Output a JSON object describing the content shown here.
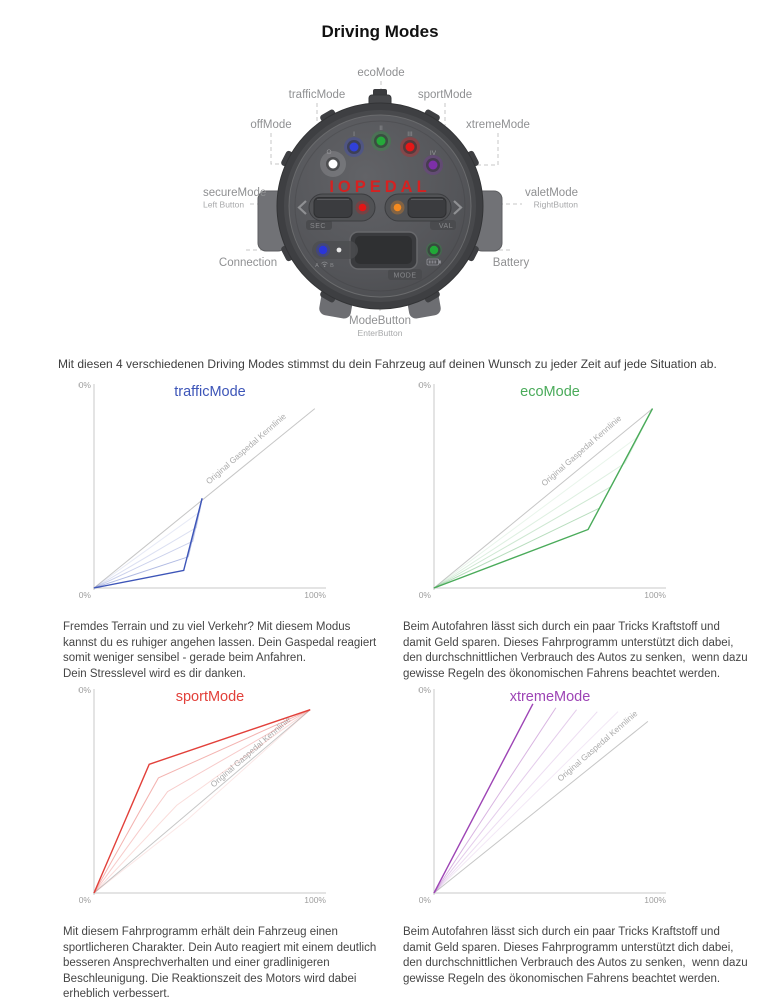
{
  "page": {
    "title": "Driving Modes",
    "intro": "Mit diesen 4 verschiedenen Driving Modes stimmst du dein Fahrzeug auf deinen Wunsch zu jeder Zeit auf jede Situation ab."
  },
  "device": {
    "logo": "IOPEDAL",
    "callouts": {
      "eco": "ecoMode",
      "traffic": "trafficMode",
      "sport": "sportMode",
      "off": "offMode",
      "xtreme": "xtremeMode",
      "secure": "secureMode",
      "secure_sub": "Left Button",
      "valet": "valetMode",
      "valet_sub": "RightButton",
      "connection": "Connection",
      "battery": "Battery",
      "mode": "ModeButton",
      "mode_sub": "EnterButton"
    },
    "markings": {
      "off": "O",
      "traffic": "I",
      "eco": "II",
      "sport": "III",
      "xtreme": "IV",
      "sec": "SEC",
      "val": "VAL",
      "mode": "MODE",
      "conn_a": "A",
      "conn_b": "B"
    },
    "led_colors": {
      "off": "#ffffff",
      "traffic": "#3040d8",
      "eco": "#25a93a",
      "sport": "#e61717",
      "xtreme": "#7d2fa8",
      "sec": "#e41616",
      "val": "#f58a1f",
      "conn": "#2a35d8",
      "battery": "#21a837"
    }
  },
  "chart_data": [
    {
      "type": "line",
      "title": "trafficMode",
      "color": "#3d55b8",
      "xlim": [
        0,
        100
      ],
      "ylim": [
        0,
        100
      ],
      "axis": {
        "y_top": "100%",
        "origin": "0%",
        "x_right": "100%"
      },
      "reference_line": {
        "label": "Original Gaspedal Kennlinie",
        "points": [
          [
            0,
            0
          ],
          [
            96,
            92
          ]
        ],
        "label_at": [
          50,
          53
        ]
      },
      "series": [
        {
          "name": "fan-4",
          "points": [
            [
              0,
              0
            ],
            [
              46,
              39
            ],
            [
              47,
              46
            ]
          ],
          "opacity": 0.12,
          "emphasis": false
        },
        {
          "name": "fan-3",
          "points": [
            [
              0,
              0
            ],
            [
              44.5,
              31
            ],
            [
              47,
              46
            ]
          ],
          "opacity": 0.18,
          "emphasis": false
        },
        {
          "name": "fan-2",
          "points": [
            [
              0,
              0
            ],
            [
              43,
              24
            ],
            [
              47,
              46
            ]
          ],
          "opacity": 0.27,
          "emphasis": false
        },
        {
          "name": "fan-1",
          "points": [
            [
              0,
              0
            ],
            [
              41,
              16
            ],
            [
              47,
              46
            ]
          ],
          "opacity": 0.4,
          "emphasis": false
        },
        {
          "name": "trafficMode-curve",
          "points": [
            [
              0,
              0
            ],
            [
              39,
              9
            ],
            [
              47,
              46
            ]
          ],
          "opacity": 1,
          "emphasis": true
        }
      ],
      "description": "Fremdes Terrain und zu viel Verkehr? Mit diesem Modus\nkannst du es ruhiger angehen lassen. Dein Gaspedal reagiert\nsomit weniger sensibel - gerade beim Anfahren.\nDein Stresslevel wird es dir danken."
    },
    {
      "type": "line",
      "title": "ecoMode",
      "color": "#4aab5a",
      "xlim": [
        0,
        100
      ],
      "ylim": [
        0,
        100
      ],
      "axis": {
        "y_top": "100%",
        "origin": "0%",
        "x_right": "100%"
      },
      "reference_line": {
        "label": "Original Gaspedal Kennlinie",
        "points": [
          [
            0,
            0
          ],
          [
            95,
            92
          ]
        ],
        "label_at": [
          48,
          52
        ]
      },
      "series": [
        {
          "name": "fan-4",
          "points": [
            [
              0,
              0
            ],
            [
              88,
              77
            ],
            [
              95,
              92
            ]
          ],
          "opacity": 0.12,
          "emphasis": false
        },
        {
          "name": "fan-3",
          "points": [
            [
              0,
              0
            ],
            [
              83,
              64
            ],
            [
              95,
              92
            ]
          ],
          "opacity": 0.18,
          "emphasis": false
        },
        {
          "name": "fan-2",
          "points": [
            [
              0,
              0
            ],
            [
              77,
              52
            ],
            [
              95,
              92
            ]
          ],
          "opacity": 0.27,
          "emphasis": false
        },
        {
          "name": "fan-1",
          "points": [
            [
              0,
              0
            ],
            [
              72,
              41
            ],
            [
              95,
              92
            ]
          ],
          "opacity": 0.4,
          "emphasis": false
        },
        {
          "name": "ecoMode-curve",
          "points": [
            [
              0,
              0
            ],
            [
              67,
              30
            ],
            [
              95,
              92
            ]
          ],
          "opacity": 1,
          "emphasis": true
        }
      ],
      "description": "Beim Autofahren lässt sich durch ein paar Tricks Kraftstoff und\ndamit Geld sparen. Dieses Fahrprogramm unterstützt dich dabei,\nden durchschnittlichen Verbrauch des Autos zu senken,  wenn dazu\ngewisse Regeln des ökonomischen Fahrens beachtet werden."
    },
    {
      "type": "line",
      "title": "sportMode",
      "color": "#e2403a",
      "xlim": [
        0,
        100
      ],
      "ylim": [
        0,
        100
      ],
      "axis": {
        "y_top": "100%",
        "origin": "0%",
        "x_right": "100%"
      },
      "reference_line": {
        "label": "Original Gaspedal Kennlinie",
        "points": [
          [
            0,
            0
          ],
          [
            94,
            94
          ]
        ],
        "label_at": [
          52,
          54
        ]
      },
      "series": [
        {
          "name": "fan-4",
          "points": [
            [
              0,
              0
            ],
            [
              41,
              38
            ],
            [
              94,
              94
            ]
          ],
          "opacity": 0.12,
          "emphasis": false
        },
        {
          "name": "fan-3",
          "points": [
            [
              0,
              0
            ],
            [
              36,
              45
            ],
            [
              94,
              94
            ]
          ],
          "opacity": 0.18,
          "emphasis": false
        },
        {
          "name": "fan-2",
          "points": [
            [
              0,
              0
            ],
            [
              32,
              52
            ],
            [
              94,
              94
            ]
          ],
          "opacity": 0.27,
          "emphasis": false
        },
        {
          "name": "fan-1",
          "points": [
            [
              0,
              0
            ],
            [
              28,
              59
            ],
            [
              94,
              94
            ]
          ],
          "opacity": 0.4,
          "emphasis": false
        },
        {
          "name": "sportMode-curve",
          "points": [
            [
              0,
              0
            ],
            [
              24,
              66
            ],
            [
              94,
              94
            ]
          ],
          "opacity": 1,
          "emphasis": true
        }
      ],
      "description": "Mit diesem Fahrprogramm erhält dein Fahrzeug einen\nsportlicheren Charakter. Dein Auto reagiert mit einem deutlich\nbesseren Ansprechverhalten und einer gradlinigeren\nBeschleunigung. Die Reaktionszeit des Motors wird dabei\nerheblich verbessert."
    },
    {
      "type": "line",
      "title": "xtremeMode",
      "color": "#9d44b5",
      "xlim": [
        0,
        100
      ],
      "ylim": [
        0,
        100
      ],
      "axis": {
        "y_top": "100%",
        "origin": "0%",
        "x_right": "100%"
      },
      "reference_line": {
        "label": "Original Gaspedal Kennlinie",
        "points": [
          [
            0,
            0
          ],
          [
            93,
            88
          ]
        ],
        "label_at": [
          55,
          57
        ]
      },
      "series": [
        {
          "name": "fan-4",
          "points": [
            [
              0,
              0
            ],
            [
              80,
              93
            ]
          ],
          "opacity": 0.12,
          "emphasis": false
        },
        {
          "name": "fan-3",
          "points": [
            [
              0,
              0
            ],
            [
              71,
              93
            ]
          ],
          "opacity": 0.18,
          "emphasis": false
        },
        {
          "name": "fan-2",
          "points": [
            [
              0,
              0
            ],
            [
              62,
              94
            ]
          ],
          "opacity": 0.27,
          "emphasis": false
        },
        {
          "name": "fan-1",
          "points": [
            [
              0,
              0
            ],
            [
              53,
              95
            ]
          ],
          "opacity": 0.4,
          "emphasis": false
        },
        {
          "name": "xtremeMode-curve",
          "points": [
            [
              0,
              0
            ],
            [
              43,
              97
            ]
          ],
          "opacity": 1,
          "emphasis": true
        }
      ],
      "description": "Beim Autofahren lässt sich durch ein paar Tricks Kraftstoff und\ndamit Geld sparen. Dieses Fahrprogramm unterstützt dich dabei,\nden durchschnittlichen Verbrauch des Autos zu senken,  wenn dazu\ngewisse Regeln des ökonomischen Fahrens beachtet werden."
    }
  ]
}
